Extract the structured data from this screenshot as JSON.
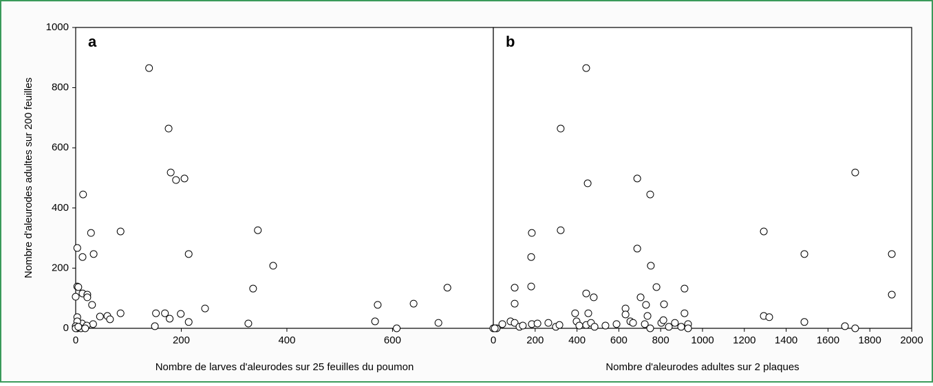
{
  "chart_data": [
    {
      "type": "scatter",
      "panel_label": "a",
      "xlabel": "Nombre de larves d'aleurodes sur 25 feuilles du poumon",
      "ylabel": "Nombre d'aleurodes adultes sur 200 feuilles",
      "xlim": [
        0,
        791
      ],
      "xticks": [
        0,
        200,
        400,
        600
      ],
      "ylim": [
        0,
        1000
      ],
      "yticks": [
        0,
        200,
        400,
        600,
        800,
        1000
      ],
      "marker_fill": "#ffffff",
      "marker_edge": "#000000",
      "x": [
        139,
        176,
        180,
        190,
        206,
        14,
        29,
        85,
        345,
        13,
        34,
        214,
        374,
        3,
        704,
        336,
        3,
        5,
        13,
        22,
        22,
        0,
        31,
        572,
        640,
        85,
        152,
        169,
        199,
        60,
        46,
        65,
        178,
        3,
        245,
        214,
        567,
        687,
        327,
        150,
        608,
        12,
        33,
        3,
        21,
        0,
        3,
        10,
        18,
        0,
        5
      ],
      "y": [
        865,
        664,
        518,
        493,
        498,
        445,
        317,
        322,
        326,
        237,
        247,
        247,
        208,
        267,
        135,
        132,
        139,
        137,
        116,
        112,
        103,
        105,
        78,
        78,
        82,
        50,
        50,
        50,
        48,
        41,
        39,
        30,
        32,
        37,
        66,
        21,
        23,
        18,
        16,
        7,
        0,
        16,
        14,
        23,
        9,
        7,
        0,
        0,
        0,
        0,
        5
      ]
    },
    {
      "type": "scatter",
      "panel_label": "b",
      "xlabel": "Nombre d'aleurodes adultes sur 2 plaques",
      "xlim": [
        0,
        2000
      ],
      "xticks": [
        0,
        200,
        400,
        600,
        800,
        1000,
        1200,
        1400,
        1600,
        1800,
        2000
      ],
      "ylim": [
        0,
        1000
      ],
      "marker_fill": "#ffffff",
      "marker_edge": "#000000",
      "x": [
        444,
        322,
        1730,
        451,
        688,
        750,
        184,
        1293,
        322,
        181,
        1487,
        1905,
        753,
        688,
        102,
        181,
        780,
        914,
        444,
        1905,
        480,
        704,
        102,
        730,
        816,
        454,
        391,
        914,
        632,
        632,
        737,
        1293,
        1319,
        1487,
        1681,
        1730,
        16,
        43,
        82,
        102,
        125,
        141,
        184,
        211,
        263,
        299,
        316,
        398,
        411,
        444,
        467,
        484,
        536,
        589,
        655,
        668,
        724,
        750,
        803,
        813,
        839,
        868,
        898,
        931,
        931,
        0,
        7
      ],
      "y": [
        865,
        664,
        518,
        482,
        498,
        445,
        317,
        322,
        326,
        237,
        247,
        247,
        208,
        265,
        135,
        139,
        137,
        132,
        116,
        112,
        103,
        103,
        82,
        78,
        80,
        50,
        50,
        50,
        66,
        46,
        41,
        41,
        37,
        21,
        7,
        0,
        0,
        14,
        23,
        18,
        5,
        9,
        14,
        16,
        18,
        5,
        11,
        23,
        9,
        11,
        18,
        5,
        9,
        14,
        23,
        18,
        14,
        0,
        18,
        27,
        5,
        18,
        5,
        14,
        0,
        0,
        0
      ]
    }
  ]
}
